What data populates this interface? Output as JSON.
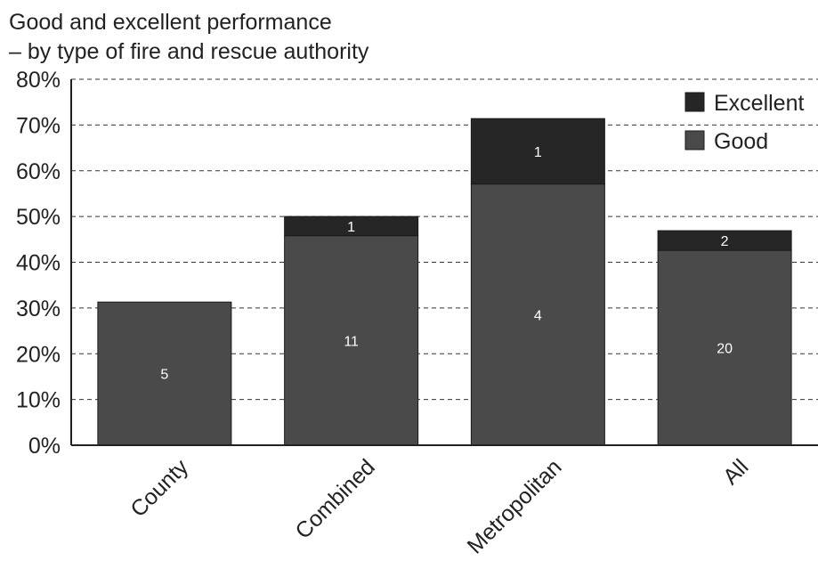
{
  "chart_data": {
    "type": "bar",
    "stacked": true,
    "title": [
      "Good and excellent performance",
      "– by type of fire and rescue authority"
    ],
    "categories": [
      "County",
      "Combined",
      "Metropolitan",
      "All"
    ],
    "series": [
      {
        "name": "Good",
        "color": "#4a4a4a",
        "values": [
          31.3,
          45.8,
          57.1,
          42.6
        ],
        "data_labels": [
          "5",
          "11",
          "4",
          "20"
        ]
      },
      {
        "name": "Excellent",
        "color": "#262626",
        "values": [
          0,
          4.2,
          14.3,
          4.3
        ],
        "data_labels": [
          "",
          "1",
          "1",
          "2"
        ]
      }
    ],
    "ylim": [
      0,
      80
    ],
    "yticks": [
      0,
      10,
      20,
      30,
      40,
      50,
      60,
      70,
      80
    ],
    "ytick_labels": [
      "0%",
      "10%",
      "20%",
      "30%",
      "40%",
      "50%",
      "60%",
      "70%",
      "80%"
    ],
    "grid": true,
    "legend": {
      "position": "top-right",
      "entries": [
        "Excellent",
        "Good"
      ]
    }
  }
}
